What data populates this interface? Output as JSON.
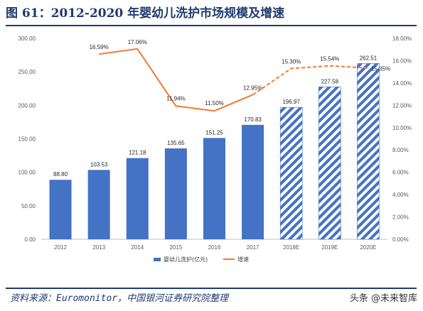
{
  "title": "图 61：2012-2020 年婴幼儿洗护市场规模及增速",
  "source": "资料来源：Euromonitor，中国银河证券研究院整理",
  "watermark": "头条 @未来智库",
  "colors": {
    "bar": "#4472c4",
    "bar_forecast_stripe": "#4472c4",
    "line": "#ed7d31",
    "title": "#1f3b6e"
  },
  "chart_data": {
    "type": "bar",
    "categories": [
      "2012",
      "2013",
      "2014",
      "2015",
      "2016",
      "2017",
      "2018E",
      "2019E",
      "2020E"
    ],
    "forecast_start_index": 6,
    "series": [
      {
        "name": "婴幼儿洗护(亿元)",
        "type": "bar",
        "axis": "left",
        "values": [
          88.8,
          103.53,
          121.18,
          135.65,
          151.25,
          170.83,
          196.97,
          227.58,
          262.51
        ],
        "labels": [
          "88.80",
          "103.53",
          "121.18",
          "135.65",
          "151.25",
          "170.83",
          "196.97",
          "227.58",
          "262.51"
        ]
      },
      {
        "name": "增速",
        "type": "line",
        "axis": "right",
        "values": [
          null,
          16.59,
          17.06,
          11.94,
          11.5,
          12.95,
          15.3,
          15.54,
          15.35
        ],
        "labels": [
          "",
          "16.59%",
          "17.06%",
          "11.94%",
          "11.50%",
          "12.95%",
          "15.30%",
          "15.54%",
          "15.35%"
        ]
      }
    ],
    "y_left": {
      "min": 0,
      "max": 300,
      "step": 50,
      "ticks": [
        "0.00",
        "50.00",
        "100.00",
        "150.00",
        "200.00",
        "250.00",
        "300.00"
      ]
    },
    "y_right": {
      "min": 0,
      "max": 18,
      "step": 2,
      "ticks": [
        "0.00%",
        "2.00%",
        "4.00%",
        "6.00%",
        "8.00%",
        "10.00%",
        "12.00%",
        "14.00%",
        "16.00%",
        "18.00%"
      ]
    },
    "grid": false,
    "legend": {
      "position": "bottom",
      "items": [
        {
          "label": "婴幼儿洗护(亿元)",
          "kind": "bar"
        },
        {
          "label": "增速",
          "kind": "line"
        }
      ]
    }
  }
}
